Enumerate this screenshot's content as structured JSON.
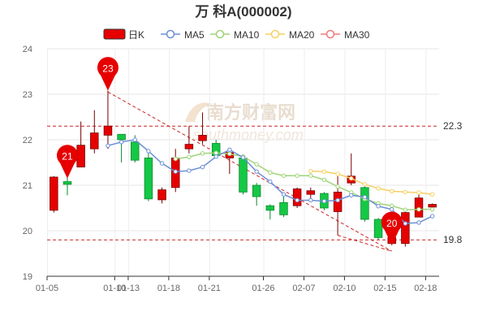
{
  "title": "万  科A(000002)",
  "watermark": {
    "brand_cn": "南方财富网",
    "brand_en": "southmoney.com"
  },
  "legend": [
    {
      "label": "日K",
      "type": "candle",
      "color": "#e60000"
    },
    {
      "label": "MA5",
      "type": "line",
      "color": "#6b8fd6"
    },
    {
      "label": "MA10",
      "type": "line",
      "color": "#9fd478"
    },
    {
      "label": "MA20",
      "type": "line",
      "color": "#f6cf63"
    },
    {
      "label": "MA30",
      "type": "line",
      "color": "#f07b7b"
    }
  ],
  "chart_data": {
    "type": "candlestick",
    "ylim": [
      19,
      24
    ],
    "yticks": [
      "19",
      "20",
      "21",
      "22",
      "23",
      "24"
    ],
    "xticks": [
      "01-05",
      "01-10",
      "01-13",
      "01-18",
      "01-21",
      "01-26",
      "02-07",
      "02-10",
      "02-15",
      "02-18"
    ],
    "candles": [
      {
        "o": 20.45,
        "c": 21.18,
        "h": 21.2,
        "l": 20.4
      },
      {
        "o": 21.08,
        "c": 21.02,
        "h": 21.2,
        "l": 20.78
      },
      {
        "o": 21.4,
        "c": 21.88,
        "h": 22.4,
        "l": 21.4
      },
      {
        "o": 21.8,
        "c": 22.15,
        "h": 22.65,
        "l": 21.7
      },
      {
        "o": 22.1,
        "c": 22.3,
        "h": 23.08,
        "l": 21.8
      },
      {
        "o": 22.12,
        "c": 22.0,
        "h": 22.12,
        "l": 21.5
      },
      {
        "o": 21.95,
        "c": 21.55,
        "h": 22.1,
        "l": 21.5
      },
      {
        "o": 21.6,
        "c": 20.7,
        "h": 21.75,
        "l": 20.65
      },
      {
        "o": 20.68,
        "c": 20.9,
        "h": 20.95,
        "l": 20.6
      },
      {
        "o": 20.95,
        "c": 21.6,
        "h": 21.8,
        "l": 20.85
      },
      {
        "o": 21.8,
        "c": 21.9,
        "h": 22.3,
        "l": 21.7
      },
      {
        "o": 21.98,
        "c": 22.1,
        "h": 22.6,
        "l": 21.9
      },
      {
        "o": 21.92,
        "c": 21.65,
        "h": 22.0,
        "l": 21.6
      },
      {
        "o": 21.6,
        "c": 21.72,
        "h": 21.78,
        "l": 21.25
      },
      {
        "o": 21.6,
        "c": 20.85,
        "h": 21.65,
        "l": 20.8
      },
      {
        "o": 21.0,
        "c": 20.75,
        "h": 21.05,
        "l": 20.55
      },
      {
        "o": 20.55,
        "c": 20.45,
        "h": 20.58,
        "l": 20.25
      },
      {
        "o": 20.62,
        "c": 20.35,
        "h": 20.75,
        "l": 20.3
      },
      {
        "o": 20.55,
        "c": 20.92,
        "h": 20.95,
        "l": 20.5
      },
      {
        "o": 20.8,
        "c": 20.88,
        "h": 20.95,
        "l": 20.65
      },
      {
        "o": 20.82,
        "c": 20.5,
        "h": 20.85,
        "l": 20.45
      },
      {
        "o": 20.42,
        "c": 20.85,
        "h": 21.2,
        "l": 19.9
      },
      {
        "o": 21.05,
        "c": 21.2,
        "h": 21.7,
        "l": 21.0
      },
      {
        "o": 20.95,
        "c": 20.25,
        "h": 20.98,
        "l": 20.2
      },
      {
        "o": 20.25,
        "c": 19.85,
        "h": 20.28,
        "l": 19.8
      },
      {
        "o": 19.72,
        "c": 19.85,
        "h": 19.98,
        "l": 19.68
      },
      {
        "o": 19.72,
        "c": 20.4,
        "h": 20.45,
        "l": 19.65
      },
      {
        "o": 20.3,
        "c": 20.72,
        "h": 20.8,
        "l": 20.3
      },
      {
        "o": 20.52,
        "c": 20.58,
        "h": 20.6,
        "l": 20.45
      }
    ],
    "ma5": [
      null,
      null,
      null,
      null,
      21.87,
      21.95,
      22.0,
      21.75,
      21.48,
      21.3,
      21.32,
      21.4,
      21.63,
      21.78,
      21.61,
      21.3,
      21.08,
      20.8,
      20.67,
      20.67,
      20.65,
      20.67,
      20.78,
      20.74,
      20.54,
      20.47,
      20.16,
      20.18,
      20.32
    ],
    "ma10": [
      null,
      null,
      null,
      null,
      null,
      null,
      null,
      null,
      null,
      21.58,
      21.62,
      21.7,
      21.71,
      21.69,
      21.63,
      21.46,
      21.28,
      21.21,
      21.21,
      21.21,
      21.12,
      20.97,
      20.84,
      20.7,
      20.6,
      20.55,
      20.46,
      20.47,
      20.47
    ],
    "ma20": [
      null,
      null,
      null,
      null,
      null,
      null,
      null,
      null,
      null,
      null,
      null,
      null,
      null,
      null,
      null,
      null,
      null,
      null,
      null,
      21.31,
      21.3,
      21.25,
      21.15,
      21.02,
      20.93,
      20.87,
      20.85,
      20.84,
      20.8
    ],
    "ref_lines": [
      {
        "value": 22.3,
        "label": "22.3"
      },
      {
        "value": 19.8,
        "label": "19.8"
      }
    ],
    "markers": [
      {
        "index": 1,
        "value": 21.15,
        "label": "21"
      },
      {
        "index": 4,
        "value": 23.08,
        "label": "23"
      },
      {
        "index": 25,
        "value": 19.68,
        "label": "20"
      }
    ],
    "trendlines": [
      {
        "from": [
          4,
          23.05
        ],
        "to": [
          25,
          19.55
        ]
      },
      {
        "from": [
          21,
          19.9
        ],
        "to": [
          25,
          19.55
        ]
      }
    ],
    "grid": true
  }
}
